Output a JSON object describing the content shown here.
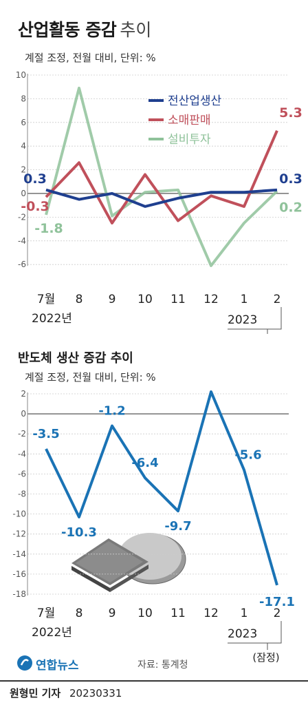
{
  "title": {
    "bold": "산업활동 증감",
    "light": "추이"
  },
  "chart1_subtitle": "계절 조정, 전월 대비, 단위: %",
  "chart2_title": "반도체 생산 증감 추이",
  "chart2_subtitle": "계절 조정, 전월 대비, 단위: %",
  "x_categories": [
    "7월",
    "8",
    "9",
    "10",
    "11",
    "12",
    "1",
    "2"
  ],
  "year_2022": "2022년",
  "year_2023": "2023",
  "provisional": "(잠정)",
  "source": "자료: 통계청",
  "logo_text": "연합뉴스",
  "byline": {
    "reporter": "원형민 기자",
    "date": "20230331"
  },
  "colors": {
    "production": "#1f3f8f",
    "retail": "#c0505b",
    "investment": "#8fc29a",
    "semiconductor": "#1a73b5",
    "grid": "#cccccc",
    "axis": "#555555"
  },
  "chart_data": [
    {
      "type": "line",
      "title": "산업활동 증감 추이",
      "categories": [
        "7월",
        "8",
        "9",
        "10",
        "11",
        "12",
        "1",
        "2"
      ],
      "ylim": [
        -6,
        10
      ],
      "yticks": [
        10,
        8,
        6,
        4,
        2,
        0,
        -2,
        -4,
        -6
      ],
      "legend_position": "top-right",
      "series": [
        {
          "name": "전산업생산",
          "color": "#1f3f8f",
          "values": [
            0.3,
            -0.5,
            0.0,
            -1.1,
            -0.4,
            0.1,
            0.1,
            0.3
          ],
          "labels": {
            "0": "0.3",
            "7": "0.3"
          }
        },
        {
          "name": "소매판매",
          "color": "#c0505b",
          "values": [
            -0.3,
            2.6,
            -2.5,
            1.6,
            -2.3,
            -0.2,
            -1.1,
            5.3
          ],
          "labels": {
            "0": "-0.3",
            "7": "5.3"
          }
        },
        {
          "name": "설비투자",
          "color": "#8fc29a",
          "values": [
            -1.8,
            8.9,
            -1.9,
            0.1,
            0.3,
            -6.1,
            -2.5,
            0.2
          ],
          "labels": {
            "0": "-1.8",
            "7": "0.2"
          }
        }
      ]
    },
    {
      "type": "line",
      "title": "반도체 생산 증감 추이",
      "categories": [
        "7월",
        "8",
        "9",
        "10",
        "11",
        "12",
        "1",
        "2"
      ],
      "ylim": [
        -18,
        2
      ],
      "yticks": [
        2,
        0,
        -2,
        -4,
        -6,
        -8,
        -10,
        -12,
        -14,
        -16,
        -18
      ],
      "series": [
        {
          "name": "반도체 생산",
          "color": "#1a73b5",
          "values": [
            -3.5,
            -10.3,
            -1.2,
            -6.4,
            -9.7,
            2.2,
            -5.6,
            -17.1
          ],
          "labels": [
            "-3.5",
            "-10.3",
            "-1.2",
            "-6.4",
            "-9.7",
            "2.2",
            "-5.6",
            "-17.1"
          ]
        }
      ]
    }
  ]
}
